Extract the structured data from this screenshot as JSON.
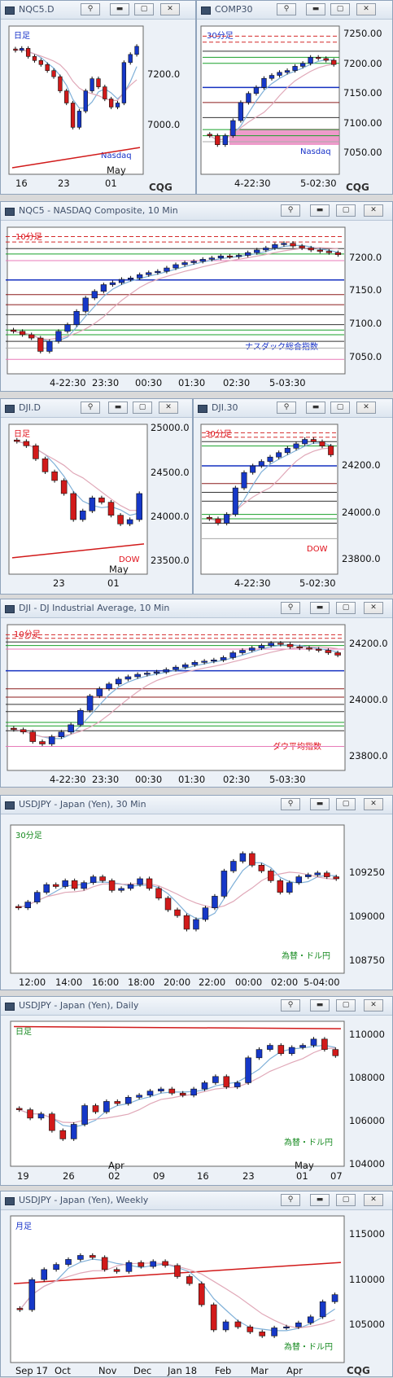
{
  "windows": [
    {
      "id": "nqc5d",
      "title": "NQC5.D",
      "tf_label": "日足",
      "sym_label": "Nasdaq",
      "yticks": [
        "7200.0",
        "7000.0"
      ],
      "xticks": [
        "16",
        "23",
        "01"
      ],
      "month_label": "May",
      "cqg": "CQG"
    },
    {
      "id": "comp30",
      "title": "COMP30",
      "tf_label": "30分足",
      "sym_label": "Nasdaq",
      "yticks": [
        "7250.00",
        "7200.00",
        "7150.00",
        "7100.00",
        "7050.00"
      ],
      "xticks": [
        "4-22:30",
        "5-02:30"
      ],
      "cqg": "CQG"
    },
    {
      "id": "nqc5_10",
      "title": "NQC5 - NASDAQ Composite, 10 Min",
      "tf_label": "10分足",
      "sym_label": "ナスダック総合指数",
      "yticks": [
        "7200.0",
        "7150.0",
        "7100.0",
        "7050.0"
      ],
      "xticks": [
        "4-22:30",
        "23:30",
        "00:30",
        "01:30",
        "02:30",
        "5-03:30"
      ]
    },
    {
      "id": "djid",
      "title": "DJI.D",
      "tf_label": "日足",
      "sym_label": "DOW",
      "yticks": [
        "25000.0",
        "24500.0",
        "24000.0",
        "23500.0"
      ],
      "xticks": [
        "23",
        "01"
      ],
      "month_label": "May"
    },
    {
      "id": "dji30",
      "title": "DJI.30",
      "tf_label": "30分足",
      "sym_label": "DOW",
      "yticks": [
        "24200.0",
        "24000.0",
        "23800.0"
      ],
      "xticks": [
        "4-22:30",
        "5-02:30"
      ]
    },
    {
      "id": "dji10",
      "title": "DJI - DJ Industrial Average, 10 Min",
      "tf_label": "10分足",
      "sym_label": "ダウ平均指数",
      "yticks": [
        "24200.0",
        "24000.0",
        "23800.0"
      ],
      "xticks": [
        "4-22:30",
        "23:30",
        "00:30",
        "01:30",
        "02:30",
        "5-03:30"
      ]
    },
    {
      "id": "usdjpy30",
      "title": "USDJPY - Japan (Yen), 30 Min",
      "tf_label": "30分足",
      "sym_label": "為替・ドル円",
      "yticks": [
        "109250",
        "109000",
        "108750"
      ],
      "xticks": [
        "12:00",
        "14:00",
        "16:00",
        "18:00",
        "20:00",
        "22:00",
        "00:00",
        "02:00",
        "5-04:00"
      ]
    },
    {
      "id": "usdjpyd",
      "title": "USDJPY - Japan (Yen), Daily",
      "tf_label": "日足",
      "sym_label": "為替・ドル円",
      "yticks": [
        "110000",
        "108000",
        "106000",
        "104000"
      ],
      "xticks": [
        "19",
        "26",
        "02",
        "09",
        "16",
        "23",
        "01",
        "07"
      ],
      "month_labels": [
        "Apr",
        "May"
      ]
    },
    {
      "id": "usdjpyw",
      "title": "USDJPY - Japan (Yen), Weekly",
      "tf_label": "月足",
      "sym_label": "為替・ドル円",
      "yticks": [
        "115000",
        "110000",
        "105000"
      ],
      "xticks": [
        "Sep 17",
        "Oct",
        "Nov",
        "Dec",
        "Jan 18",
        "Feb",
        "Mar",
        "Apr"
      ],
      "cqg": "CQG"
    }
  ],
  "colors": {
    "up": "#1638c8",
    "down": "#d11a1a",
    "panel": "#ffffff",
    "frame": "#ecf1f7",
    "resist": "#d42a2a",
    "support": "#19a02a",
    "pivot": "#1430c0",
    "highlight": "#e87ab8"
  },
  "chart_data": [
    {
      "type": "candlestick",
      "title": "NQC5.D",
      "ylim": [
        6950,
        7300
      ],
      "closes": [
        7250,
        7255,
        7235,
        7225,
        7215,
        7200,
        7185,
        7150,
        7120,
        7060,
        7100,
        7150,
        7180,
        7160,
        7130,
        7110,
        7120,
        7220,
        7240,
        7260
      ]
    },
    {
      "type": "candlestick",
      "title": "COMP30",
      "ylim": [
        7030,
        7265
      ],
      "closes": [
        7090,
        7075,
        7090,
        7115,
        7145,
        7160,
        7170,
        7185,
        7190,
        7195,
        7198,
        7205,
        7210,
        7220,
        7218,
        7215,
        7208
      ]
    },
    {
      "type": "candlestick",
      "title": "NASDAQ Composite, 10 Min",
      "ylim": [
        7030,
        7240
      ],
      "closes": [
        7090,
        7085,
        7080,
        7060,
        7075,
        7090,
        7100,
        7120,
        7140,
        7150,
        7160,
        7163,
        7168,
        7170,
        7175,
        7178,
        7180,
        7185,
        7190,
        7193,
        7195,
        7198,
        7200,
        7203,
        7202,
        7204,
        7208,
        7212,
        7215,
        7220,
        7222,
        7218,
        7215,
        7212,
        7210,
        7208,
        7205
      ]
    },
    {
      "type": "candlestick",
      "title": "DJI.D",
      "ylim": [
        23400,
        25050
      ],
      "closes": [
        24900,
        24850,
        24700,
        24550,
        24450,
        24300,
        24000,
        24100,
        24250,
        24200,
        24050,
        23950,
        24000,
        24300
      ]
    },
    {
      "type": "candlestick",
      "title": "DJI.30",
      "ylim": [
        23700,
        24350
      ],
      "closes": [
        23940,
        23920,
        23960,
        24080,
        24150,
        24180,
        24200,
        24220,
        24240,
        24260,
        24280,
        24300,
        24290,
        24270,
        24230
      ]
    },
    {
      "type": "candlestick",
      "title": "DJ Industrial Average, 10 Min",
      "ylim": [
        23780,
        24360
      ],
      "closes": [
        23940,
        23930,
        23890,
        23880,
        23910,
        23930,
        23960,
        24020,
        24080,
        24110,
        24130,
        24150,
        24160,
        24170,
        24175,
        24180,
        24190,
        24200,
        24210,
        24220,
        24225,
        24230,
        24240,
        24260,
        24270,
        24280,
        24290,
        24300,
        24295,
        24285,
        24280,
        24275,
        24270,
        24260,
        24250
      ]
    },
    {
      "type": "candlestick",
      "title": "USDJPY 30 Min",
      "ylim": [
        108640,
        109370
      ],
      "closes": [
        108960,
        108990,
        109040,
        109080,
        109070,
        109100,
        109060,
        109090,
        109120,
        109100,
        109050,
        109060,
        109080,
        109110,
        109060,
        109010,
        108950,
        108920,
        108850,
        108900,
        108960,
        109020,
        109150,
        109200,
        109240,
        109180,
        109150,
        109100,
        109040,
        109090,
        109120,
        109130,
        109140,
        109120,
        109110
      ]
    },
    {
      "type": "candlestick",
      "title": "USDJPY Daily",
      "ylim": [
        103700,
        110400
      ],
      "closes": [
        106300,
        105900,
        106100,
        105300,
        104900,
        105600,
        106500,
        106200,
        106700,
        106600,
        106900,
        107000,
        107200,
        107300,
        107100,
        107000,
        107300,
        107600,
        107900,
        107400,
        107600,
        108800,
        109200,
        109400,
        109000,
        109300,
        109400,
        109700,
        109200,
        108900
      ]
    },
    {
      "type": "candlestick",
      "title": "USDJPY Weekly",
      "ylim": [
        103000,
        117000
      ],
      "closes": [
        108000,
        111000,
        112000,
        112500,
        113000,
        113400,
        113200,
        112000,
        111800,
        112700,
        112300,
        112800,
        112400,
        111300,
        110600,
        108500,
        106000,
        106800,
        106300,
        105800,
        105400,
        106200,
        106300,
        106700,
        107300,
        108800,
        109500
      ]
    }
  ]
}
